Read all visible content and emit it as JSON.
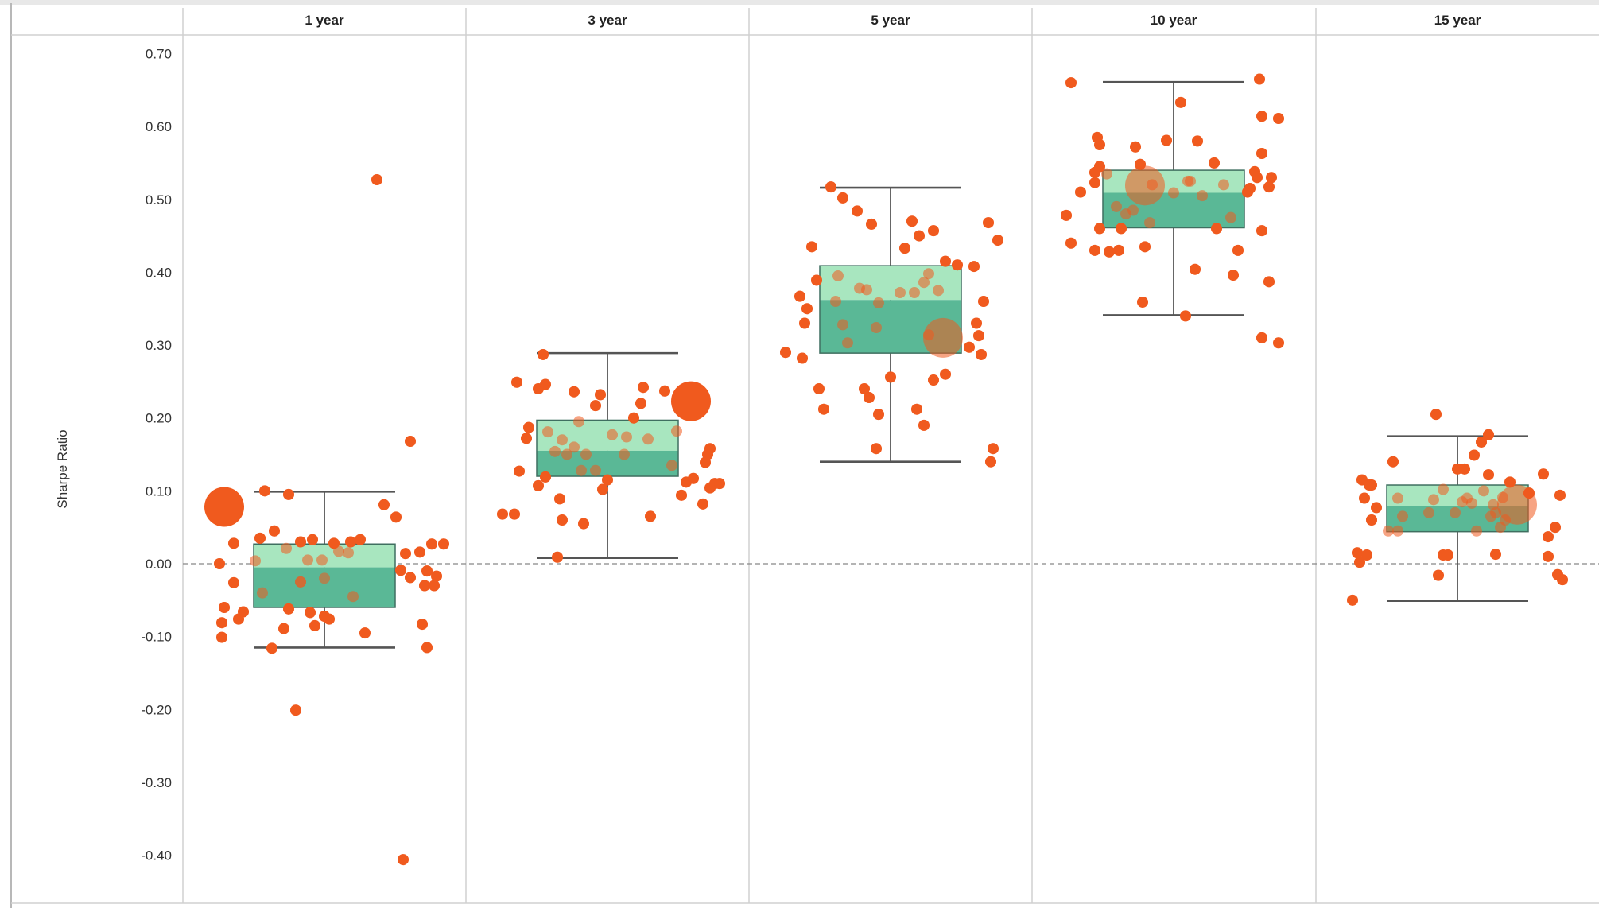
{
  "chart_data": {
    "type": "scatter",
    "subtype": "box-and-jitter",
    "title": "",
    "ylabel": "Sharpe Ratio",
    "xlabel": "",
    "ylim": [
      -0.46,
      0.72
    ],
    "yticks": [
      0.7,
      0.6,
      0.5,
      0.4,
      0.3,
      0.2,
      0.1,
      0.0,
      -0.1,
      -0.2,
      -0.3,
      -0.4
    ],
    "ytick_labels": [
      "0.70",
      "0.60",
      "0.50",
      "0.40",
      "0.30",
      "0.20",
      "0.10",
      "0.00",
      "-0.10",
      "-0.20",
      "-0.30",
      "-0.40"
    ],
    "reference_line": 0.0,
    "categories": [
      "1 year",
      "3 year",
      "5 year",
      "10 year",
      "15 year"
    ],
    "colors": {
      "point": "#f05a1e",
      "box_upper": "#a8e6bf",
      "box_lower": "#5ab896",
      "whisker": "#555555",
      "grid": "#d0d0d0",
      "zero_line": "#888888"
    },
    "boxes": [
      {
        "category": "1 year",
        "q1": -0.06,
        "median": -0.005,
        "q3": 0.027,
        "whisker_low": -0.115,
        "whisker_high": 0.099
      },
      {
        "category": "3 year",
        "q1": 0.12,
        "median": 0.155,
        "q3": 0.197,
        "whisker_low": 0.008,
        "whisker_high": 0.289
      },
      {
        "category": "5 year",
        "q1": 0.289,
        "median": 0.362,
        "q3": 0.409,
        "whisker_low": 0.14,
        "whisker_high": 0.516
      },
      {
        "category": "10 year",
        "q1": 0.461,
        "median": 0.509,
        "q3": 0.54,
        "whisker_low": 0.341,
        "whisker_high": 0.661
      },
      {
        "category": "15 year",
        "q1": 0.044,
        "median": 0.079,
        "q3": 0.108,
        "whisker_low": -0.051,
        "whisker_high": 0.175
      }
    ],
    "highlight": [
      {
        "category": "1 year",
        "jitter": -0.42,
        "y": 0.078
      },
      {
        "category": "3 year",
        "jitter": 0.35,
        "y": 0.223
      },
      {
        "category": "5 year",
        "jitter": 0.22,
        "y": 0.31
      },
      {
        "category": "10 year",
        "jitter": -0.12,
        "y": 0.519
      },
      {
        "category": "15 year",
        "jitter": 0.25,
        "y": 0.081
      }
    ],
    "series": [
      {
        "category": "1 year",
        "points": [
          [
            -0.44,
            0.0
          ],
          [
            -0.42,
            -0.06
          ],
          [
            -0.43,
            -0.081
          ],
          [
            -0.43,
            -0.101
          ],
          [
            -0.38,
            -0.026
          ],
          [
            -0.38,
            0.028
          ],
          [
            -0.34,
            -0.066
          ],
          [
            -0.36,
            -0.076
          ],
          [
            -0.29,
            0.004
          ],
          [
            -0.27,
            0.035
          ],
          [
            -0.25,
            0.1
          ],
          [
            -0.21,
            0.045
          ],
          [
            -0.22,
            -0.116
          ],
          [
            -0.15,
            0.095
          ],
          [
            -0.17,
            -0.089
          ],
          [
            -0.12,
            -0.201
          ],
          [
            -0.16,
            0.021
          ],
          [
            -0.15,
            -0.062
          ],
          [
            -0.1,
            0.03
          ],
          [
            -0.1,
            -0.025
          ],
          [
            -0.05,
            0.033
          ],
          [
            -0.07,
            0.005
          ],
          [
            -0.06,
            -0.067
          ],
          [
            -0.04,
            -0.085
          ],
          [
            -0.01,
            0.005
          ],
          [
            0.0,
            -0.072
          ],
          [
            0.02,
            -0.076
          ],
          [
            0.04,
            0.028
          ],
          [
            0.06,
            0.017
          ],
          [
            0.1,
            0.015
          ],
          [
            0.11,
            0.03
          ],
          [
            0.15,
            0.033
          ],
          [
            0.17,
            -0.095
          ],
          [
            0.22,
            0.527
          ],
          [
            0.25,
            0.081
          ],
          [
            0.3,
            0.064
          ],
          [
            0.32,
            -0.009
          ],
          [
            0.34,
            0.014
          ],
          [
            0.36,
            -0.019
          ],
          [
            0.4,
            0.016
          ],
          [
            0.41,
            -0.083
          ],
          [
            0.43,
            -0.115
          ],
          [
            0.45,
            0.027
          ],
          [
            0.5,
            0.027
          ],
          [
            0.36,
            0.168
          ],
          [
            0.33,
            -0.406
          ],
          [
            0.42,
            -0.03
          ],
          [
            0.46,
            -0.03
          ],
          [
            0.47,
            -0.017
          ],
          [
            0.43,
            -0.01
          ],
          [
            -0.26,
            -0.04
          ],
          [
            -0.1,
            -0.025
          ],
          [
            0.12,
            -0.045
          ],
          [
            0.0,
            -0.02
          ]
        ]
      },
      {
        "category": "3 year",
        "points": [
          [
            -0.44,
            0.068
          ],
          [
            -0.39,
            0.068
          ],
          [
            -0.37,
            0.127
          ],
          [
            -0.38,
            0.249
          ],
          [
            -0.33,
            0.187
          ],
          [
            -0.34,
            0.172
          ],
          [
            -0.29,
            0.107
          ],
          [
            -0.26,
            0.119
          ],
          [
            -0.29,
            0.24
          ],
          [
            -0.26,
            0.246
          ],
          [
            -0.27,
            0.287
          ],
          [
            -0.25,
            0.181
          ],
          [
            -0.22,
            0.154
          ],
          [
            -0.2,
            0.089
          ],
          [
            -0.19,
            0.06
          ],
          [
            -0.21,
            0.009
          ],
          [
            -0.14,
            0.236
          ],
          [
            -0.14,
            0.16
          ],
          [
            -0.1,
            0.055
          ],
          [
            -0.05,
            0.217
          ],
          [
            -0.03,
            0.232
          ],
          [
            -0.02,
            0.102
          ],
          [
            0.02,
            0.177
          ],
          [
            0.08,
            0.174
          ],
          [
            0.11,
            0.2
          ],
          [
            0.15,
            0.242
          ],
          [
            0.14,
            0.22
          ],
          [
            0.17,
            0.171
          ],
          [
            0.18,
            0.065
          ],
          [
            0.24,
            0.237
          ],
          [
            0.27,
            0.135
          ],
          [
            0.29,
            0.182
          ],
          [
            0.31,
            0.094
          ],
          [
            0.33,
            0.112
          ],
          [
            0.37,
            0.212
          ],
          [
            0.36,
            0.117
          ],
          [
            0.41,
            0.139
          ],
          [
            0.43,
            0.104
          ],
          [
            0.4,
            0.082
          ],
          [
            0.42,
            0.15
          ],
          [
            0.43,
            0.158
          ],
          [
            0.45,
            0.11
          ],
          [
            0.47,
            0.11
          ],
          [
            -0.19,
            0.17
          ],
          [
            -0.17,
            0.15
          ],
          [
            -0.12,
            0.195
          ],
          [
            -0.11,
            0.128
          ],
          [
            -0.09,
            0.15
          ],
          [
            -0.05,
            0.128
          ],
          [
            0.0,
            0.115
          ],
          [
            0.07,
            0.15
          ]
        ]
      },
      {
        "category": "5 year",
        "points": [
          [
            -0.44,
            0.29
          ],
          [
            -0.37,
            0.282
          ],
          [
            -0.38,
            0.367
          ],
          [
            -0.35,
            0.35
          ],
          [
            -0.36,
            0.33
          ],
          [
            -0.31,
            0.389
          ],
          [
            -0.33,
            0.435
          ],
          [
            -0.3,
            0.24
          ],
          [
            -0.28,
            0.212
          ],
          [
            -0.25,
            0.517
          ],
          [
            -0.2,
            0.502
          ],
          [
            -0.18,
            0.303
          ],
          [
            -0.14,
            0.484
          ],
          [
            -0.13,
            0.378
          ],
          [
            -0.11,
            0.24
          ],
          [
            -0.08,
            0.466
          ],
          [
            -0.09,
            0.228
          ],
          [
            -0.05,
            0.205
          ],
          [
            -0.06,
            0.158
          ],
          [
            0.0,
            0.256
          ],
          [
            0.06,
            0.433
          ],
          [
            0.09,
            0.47
          ],
          [
            0.12,
            0.45
          ],
          [
            0.11,
            0.212
          ],
          [
            0.14,
            0.19
          ],
          [
            0.18,
            0.457
          ],
          [
            0.18,
            0.252
          ],
          [
            0.23,
            0.415
          ],
          [
            0.23,
            0.26
          ],
          [
            0.28,
            0.41
          ],
          [
            0.33,
            0.297
          ],
          [
            0.35,
            0.408
          ],
          [
            0.36,
            0.33
          ],
          [
            0.37,
            0.313
          ],
          [
            0.38,
            0.287
          ],
          [
            0.39,
            0.36
          ],
          [
            0.41,
            0.468
          ],
          [
            0.42,
            0.14
          ],
          [
            0.43,
            0.158
          ],
          [
            0.45,
            0.444
          ],
          [
            -0.22,
            0.395
          ],
          [
            -0.23,
            0.36
          ],
          [
            -0.2,
            0.328
          ],
          [
            -0.1,
            0.376
          ],
          [
            -0.05,
            0.358
          ],
          [
            -0.06,
            0.324
          ],
          [
            0.04,
            0.372
          ],
          [
            0.1,
            0.372
          ],
          [
            0.14,
            0.386
          ],
          [
            0.16,
            0.398
          ],
          [
            0.2,
            0.375
          ],
          [
            0.16,
            0.314
          ]
        ]
      },
      {
        "category": "10 year",
        "points": [
          [
            -0.43,
            0.66
          ],
          [
            -0.39,
            0.51
          ],
          [
            -0.43,
            0.44
          ],
          [
            -0.45,
            0.478
          ],
          [
            -0.32,
            0.585
          ],
          [
            -0.31,
            0.575
          ],
          [
            -0.31,
            0.545
          ],
          [
            -0.33,
            0.523
          ],
          [
            -0.33,
            0.537
          ],
          [
            -0.31,
            0.46
          ],
          [
            -0.33,
            0.43
          ],
          [
            -0.27,
            0.428
          ],
          [
            -0.23,
            0.43
          ],
          [
            -0.22,
            0.46
          ],
          [
            -0.16,
            0.572
          ],
          [
            -0.14,
            0.548
          ],
          [
            -0.12,
            0.435
          ],
          [
            -0.13,
            0.359
          ],
          [
            -0.03,
            0.581
          ],
          [
            0.03,
            0.633
          ],
          [
            0.1,
            0.58
          ],
          [
            0.09,
            0.404
          ],
          [
            0.05,
            0.34
          ],
          [
            0.17,
            0.55
          ],
          [
            0.21,
            0.52
          ],
          [
            0.24,
            0.475
          ],
          [
            0.25,
            0.396
          ],
          [
            0.27,
            0.43
          ],
          [
            0.31,
            0.51
          ],
          [
            0.32,
            0.515
          ],
          [
            0.34,
            0.538
          ],
          [
            0.35,
            0.53
          ],
          [
            0.37,
            0.563
          ],
          [
            0.37,
            0.614
          ],
          [
            0.36,
            0.665
          ],
          [
            0.37,
            0.31
          ],
          [
            0.4,
            0.517
          ],
          [
            0.41,
            0.53
          ],
          [
            0.4,
            0.387
          ],
          [
            0.44,
            0.303
          ],
          [
            0.44,
            0.611
          ],
          [
            0.37,
            0.457
          ],
          [
            -0.24,
            0.49
          ],
          [
            -0.2,
            0.48
          ],
          [
            -0.17,
            0.485
          ],
          [
            -0.1,
            0.468
          ],
          [
            0.0,
            0.509
          ],
          [
            0.07,
            0.525
          ],
          [
            0.12,
            0.505
          ],
          [
            0.18,
            0.46
          ],
          [
            -0.28,
            0.535
          ],
          [
            -0.09,
            0.52
          ],
          [
            0.06,
            0.525
          ]
        ]
      },
      {
        "category": "15 year",
        "points": [
          [
            -0.44,
            -0.05
          ],
          [
            -0.42,
            0.015
          ],
          [
            -0.41,
            0.002
          ],
          [
            -0.38,
            0.012
          ],
          [
            -0.4,
            0.115
          ],
          [
            -0.37,
            0.108
          ],
          [
            -0.39,
            0.09
          ],
          [
            -0.36,
            0.06
          ],
          [
            -0.36,
            0.108
          ],
          [
            -0.34,
            0.077
          ],
          [
            -0.29,
            0.045
          ],
          [
            -0.27,
            0.14
          ],
          [
            -0.25,
            0.09
          ],
          [
            -0.23,
            0.065
          ],
          [
            -0.09,
            0.205
          ],
          [
            -0.08,
            -0.016
          ],
          [
            -0.06,
            0.012
          ],
          [
            -0.04,
            0.012
          ],
          [
            0.0,
            0.13
          ],
          [
            0.03,
            0.13
          ],
          [
            0.06,
            0.083
          ],
          [
            0.07,
            0.149
          ],
          [
            0.1,
            0.167
          ],
          [
            0.13,
            0.177
          ],
          [
            0.13,
            0.122
          ],
          [
            0.15,
            0.081
          ],
          [
            0.16,
            0.013
          ],
          [
            0.19,
            0.091
          ],
          [
            0.22,
            0.112
          ],
          [
            0.3,
            0.097
          ],
          [
            0.36,
            0.123
          ],
          [
            0.38,
            0.037
          ],
          [
            0.41,
            0.05
          ],
          [
            0.43,
            0.094
          ],
          [
            0.38,
            0.01
          ],
          [
            0.42,
            -0.015
          ],
          [
            0.44,
            -0.022
          ],
          [
            -0.25,
            0.045
          ],
          [
            -0.12,
            0.07
          ],
          [
            -0.1,
            0.088
          ],
          [
            -0.06,
            0.102
          ],
          [
            -0.01,
            0.07
          ],
          [
            0.04,
            0.09
          ],
          [
            0.08,
            0.045
          ],
          [
            0.11,
            0.1
          ],
          [
            0.16,
            0.07
          ],
          [
            0.18,
            0.05
          ],
          [
            0.2,
            0.06
          ],
          [
            0.14,
            0.065
          ],
          [
            0.02,
            0.085
          ]
        ]
      }
    ]
  }
}
